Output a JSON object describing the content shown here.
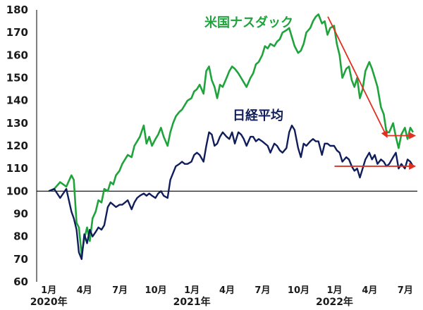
{
  "chart_data": {
    "type": "line",
    "title": "",
    "xlabel": "",
    "ylabel": "",
    "ylim": [
      60,
      180
    ],
    "yticks": [
      60,
      70,
      80,
      90,
      100,
      110,
      120,
      130,
      140,
      150,
      160,
      170,
      180
    ],
    "baseline": 100,
    "grid": false,
    "x_labels": [
      {
        "label": "1月",
        "x": "2020-01"
      },
      {
        "label": "4月",
        "x": "2020-04"
      },
      {
        "label": "7月",
        "x": "2020-07"
      },
      {
        "label": "10月",
        "x": "2020-10"
      },
      {
        "label": "1月",
        "x": "2021-01"
      },
      {
        "label": "4月",
        "x": "2021-04"
      },
      {
        "label": "7月",
        "x": "2021-07"
      },
      {
        "label": "10月",
        "x": "2021-10"
      },
      {
        "label": "1月",
        "x": "2022-01"
      },
      {
        "label": "4月",
        "x": "2022-04"
      },
      {
        "label": "7月",
        "x": "2022-07"
      }
    ],
    "year_labels": [
      {
        "label": "2020年",
        "x": "2020-01"
      },
      {
        "label": "2021年",
        "x": "2021-01"
      },
      {
        "label": "2022年",
        "x": "2022-01"
      }
    ],
    "series": [
      {
        "name": "米国ナスダック",
        "color": "#1fa33c",
        "points": [
          [
            "2020-01-01",
            100
          ],
          [
            "2020-01-15",
            101
          ],
          [
            "2020-01-30",
            104
          ],
          [
            "2020-02-15",
            102
          ],
          [
            "2020-02-28",
            107
          ],
          [
            "2020-03-05",
            105
          ],
          [
            "2020-03-12",
            86
          ],
          [
            "2020-03-18",
            84
          ],
          [
            "2020-03-25",
            72
          ],
          [
            "2020-04-01",
            79
          ],
          [
            "2020-04-08",
            84
          ],
          [
            "2020-04-15",
            78
          ],
          [
            "2020-04-22",
            88
          ],
          [
            "2020-04-30",
            91
          ],
          [
            "2020-05-07",
            96
          ],
          [
            "2020-05-15",
            95
          ],
          [
            "2020-05-22",
            101
          ],
          [
            "2020-05-31",
            100
          ],
          [
            "2020-06-07",
            104
          ],
          [
            "2020-06-14",
            103
          ],
          [
            "2020-06-21",
            107
          ],
          [
            "2020-06-30",
            109
          ],
          [
            "2020-07-07",
            112
          ],
          [
            "2020-07-14",
            114
          ],
          [
            "2020-07-21",
            116
          ],
          [
            "2020-07-31",
            115
          ],
          [
            "2020-08-07",
            120
          ],
          [
            "2020-08-14",
            122
          ],
          [
            "2020-08-21",
            124
          ],
          [
            "2020-08-31",
            129
          ],
          [
            "2020-09-07",
            121
          ],
          [
            "2020-09-14",
            124
          ],
          [
            "2020-09-21",
            120
          ],
          [
            "2020-09-30",
            123
          ],
          [
            "2020-10-07",
            125
          ],
          [
            "2020-10-14",
            128
          ],
          [
            "2020-10-21",
            124
          ],
          [
            "2020-10-31",
            120
          ],
          [
            "2020-11-07",
            126
          ],
          [
            "2020-11-14",
            130
          ],
          [
            "2020-11-21",
            133
          ],
          [
            "2020-11-30",
            135
          ],
          [
            "2020-12-07",
            136
          ],
          [
            "2020-12-14",
            138
          ],
          [
            "2020-12-21",
            140
          ],
          [
            "2020-12-31",
            141
          ],
          [
            "2021-01-07",
            144
          ],
          [
            "2021-01-14",
            145
          ],
          [
            "2021-01-21",
            147
          ],
          [
            "2021-01-31",
            143
          ],
          [
            "2021-02-07",
            153
          ],
          [
            "2021-02-14",
            155
          ],
          [
            "2021-02-21",
            149
          ],
          [
            "2021-02-28",
            146
          ],
          [
            "2021-03-07",
            141
          ],
          [
            "2021-03-14",
            147
          ],
          [
            "2021-03-21",
            146
          ],
          [
            "2021-03-31",
            150
          ],
          [
            "2021-04-07",
            153
          ],
          [
            "2021-04-14",
            155
          ],
          [
            "2021-04-21",
            154
          ],
          [
            "2021-04-30",
            152
          ],
          [
            "2021-05-07",
            150
          ],
          [
            "2021-05-14",
            148
          ],
          [
            "2021-05-21",
            146
          ],
          [
            "2021-05-31",
            150
          ],
          [
            "2021-06-07",
            152
          ],
          [
            "2021-06-14",
            156
          ],
          [
            "2021-06-21",
            157
          ],
          [
            "2021-06-30",
            160
          ],
          [
            "2021-07-07",
            164
          ],
          [
            "2021-07-14",
            163
          ],
          [
            "2021-07-21",
            165
          ],
          [
            "2021-07-31",
            164
          ],
          [
            "2021-08-07",
            166
          ],
          [
            "2021-08-14",
            167
          ],
          [
            "2021-08-21",
            170
          ],
          [
            "2021-08-31",
            171
          ],
          [
            "2021-09-07",
            172
          ],
          [
            "2021-09-14",
            168
          ],
          [
            "2021-09-21",
            164
          ],
          [
            "2021-09-30",
            161
          ],
          [
            "2021-10-07",
            162
          ],
          [
            "2021-10-14",
            165
          ],
          [
            "2021-10-21",
            170
          ],
          [
            "2021-10-31",
            172
          ],
          [
            "2021-11-07",
            175
          ],
          [
            "2021-11-14",
            177
          ],
          [
            "2021-11-21",
            178
          ],
          [
            "2021-11-30",
            174
          ],
          [
            "2021-12-07",
            175
          ],
          [
            "2021-12-14",
            169
          ],
          [
            "2021-12-21",
            172
          ],
          [
            "2021-12-31",
            173
          ],
          [
            "2022-01-07",
            165
          ],
          [
            "2022-01-14",
            160
          ],
          [
            "2022-01-21",
            150
          ],
          [
            "2022-01-31",
            154
          ],
          [
            "2022-02-07",
            155
          ],
          [
            "2022-02-14",
            149
          ],
          [
            "2022-02-21",
            146
          ],
          [
            "2022-02-28",
            150
          ],
          [
            "2022-03-07",
            141
          ],
          [
            "2022-03-14",
            145
          ],
          [
            "2022-03-21",
            153
          ],
          [
            "2022-03-31",
            157
          ],
          [
            "2022-04-07",
            154
          ],
          [
            "2022-04-14",
            150
          ],
          [
            "2022-04-21",
            146
          ],
          [
            "2022-04-30",
            137
          ],
          [
            "2022-05-07",
            134
          ],
          [
            "2022-05-14",
            126
          ],
          [
            "2022-05-21",
            126
          ],
          [
            "2022-05-31",
            130
          ],
          [
            "2022-06-07",
            124
          ],
          [
            "2022-06-14",
            119
          ],
          [
            "2022-06-21",
            125
          ],
          [
            "2022-06-30",
            128
          ],
          [
            "2022-07-07",
            123
          ],
          [
            "2022-07-14",
            128
          ],
          [
            "2022-07-21",
            126
          ]
        ]
      },
      {
        "name": "日経平均",
        "color": "#0f1e5a",
        "points": [
          [
            "2020-01-01",
            100
          ],
          [
            "2020-01-15",
            101
          ],
          [
            "2020-01-30",
            97
          ],
          [
            "2020-02-15",
            101
          ],
          [
            "2020-02-28",
            91
          ],
          [
            "2020-03-05",
            88
          ],
          [
            "2020-03-12",
            83
          ],
          [
            "2020-03-18",
            73
          ],
          [
            "2020-03-25",
            70
          ],
          [
            "2020-04-01",
            81
          ],
          [
            "2020-04-08",
            77
          ],
          [
            "2020-04-15",
            83
          ],
          [
            "2020-04-22",
            80
          ],
          [
            "2020-04-30",
            82
          ],
          [
            "2020-05-07",
            84
          ],
          [
            "2020-05-15",
            83
          ],
          [
            "2020-05-22",
            85
          ],
          [
            "2020-05-31",
            93
          ],
          [
            "2020-06-07",
            95
          ],
          [
            "2020-06-14",
            94
          ],
          [
            "2020-06-21",
            93
          ],
          [
            "2020-06-30",
            94
          ],
          [
            "2020-07-07",
            94
          ],
          [
            "2020-07-14",
            95
          ],
          [
            "2020-07-21",
            96
          ],
          [
            "2020-07-31",
            92
          ],
          [
            "2020-08-07",
            95
          ],
          [
            "2020-08-14",
            97
          ],
          [
            "2020-08-21",
            98
          ],
          [
            "2020-08-31",
            99
          ],
          [
            "2020-09-07",
            98
          ],
          [
            "2020-09-14",
            99
          ],
          [
            "2020-09-21",
            98
          ],
          [
            "2020-09-30",
            97
          ],
          [
            "2020-10-07",
            99
          ],
          [
            "2020-10-14",
            100
          ],
          [
            "2020-10-21",
            98
          ],
          [
            "2020-10-31",
            97
          ],
          [
            "2020-11-07",
            105
          ],
          [
            "2020-11-14",
            108
          ],
          [
            "2020-11-21",
            111
          ],
          [
            "2020-11-30",
            112
          ],
          [
            "2020-12-07",
            113
          ],
          [
            "2020-12-14",
            112
          ],
          [
            "2020-12-21",
            112
          ],
          [
            "2020-12-31",
            113
          ],
          [
            "2021-01-07",
            116
          ],
          [
            "2021-01-14",
            117
          ],
          [
            "2021-01-21",
            116
          ],
          [
            "2021-01-31",
            113
          ],
          [
            "2021-02-07",
            120
          ],
          [
            "2021-02-14",
            126
          ],
          [
            "2021-02-21",
            125
          ],
          [
            "2021-02-28",
            120
          ],
          [
            "2021-03-07",
            121
          ],
          [
            "2021-03-14",
            124
          ],
          [
            "2021-03-21",
            126
          ],
          [
            "2021-03-31",
            124
          ],
          [
            "2021-04-07",
            123
          ],
          [
            "2021-04-14",
            126
          ],
          [
            "2021-04-21",
            121
          ],
          [
            "2021-04-30",
            126
          ],
          [
            "2021-05-07",
            125
          ],
          [
            "2021-05-14",
            123
          ],
          [
            "2021-05-21",
            120
          ],
          [
            "2021-05-31",
            124
          ],
          [
            "2021-06-07",
            124
          ],
          [
            "2021-06-14",
            122
          ],
          [
            "2021-06-21",
            123
          ],
          [
            "2021-06-30",
            122
          ],
          [
            "2021-07-07",
            121
          ],
          [
            "2021-07-14",
            120
          ],
          [
            "2021-07-21",
            117
          ],
          [
            "2021-07-31",
            121
          ],
          [
            "2021-08-07",
            120
          ],
          [
            "2021-08-14",
            118
          ],
          [
            "2021-08-21",
            117
          ],
          [
            "2021-08-31",
            119
          ],
          [
            "2021-09-07",
            126
          ],
          [
            "2021-09-14",
            129
          ],
          [
            "2021-09-21",
            127
          ],
          [
            "2021-09-30",
            119
          ],
          [
            "2021-10-07",
            115
          ],
          [
            "2021-10-14",
            121
          ],
          [
            "2021-10-21",
            120
          ],
          [
            "2021-10-31",
            122
          ],
          [
            "2021-11-07",
            123
          ],
          [
            "2021-11-14",
            122
          ],
          [
            "2021-11-21",
            122
          ],
          [
            "2021-11-30",
            116
          ],
          [
            "2021-12-07",
            121
          ],
          [
            "2021-12-14",
            121
          ],
          [
            "2021-12-21",
            120
          ],
          [
            "2021-12-31",
            120
          ],
          [
            "2022-01-07",
            118
          ],
          [
            "2022-01-14",
            117
          ],
          [
            "2022-01-21",
            113
          ],
          [
            "2022-01-31",
            115
          ],
          [
            "2022-02-07",
            114
          ],
          [
            "2022-02-14",
            111
          ],
          [
            "2022-02-21",
            109
          ],
          [
            "2022-02-28",
            110
          ],
          [
            "2022-03-07",
            106
          ],
          [
            "2022-03-14",
            110
          ],
          [
            "2022-03-21",
            114
          ],
          [
            "2022-03-31",
            117
          ],
          [
            "2022-04-07",
            114
          ],
          [
            "2022-04-14",
            116
          ],
          [
            "2022-04-21",
            112
          ],
          [
            "2022-04-30",
            114
          ],
          [
            "2022-05-07",
            113
          ],
          [
            "2022-05-14",
            111
          ],
          [
            "2022-05-21",
            112
          ],
          [
            "2022-05-31",
            115
          ],
          [
            "2022-06-07",
            117
          ],
          [
            "2022-06-14",
            110
          ],
          [
            "2022-06-21",
            112
          ],
          [
            "2022-06-30",
            110
          ],
          [
            "2022-07-07",
            114
          ],
          [
            "2022-07-14",
            113
          ],
          [
            "2022-07-21",
            111
          ]
        ]
      }
    ],
    "trend_arrows": [
      {
        "from": [
          "2021-12-15",
          177
        ],
        "to": [
          "2022-05-15",
          124
        ],
        "color": "#e03020"
      },
      {
        "from": [
          "2022-05-15",
          124.5
        ],
        "to": [
          "2022-07-25",
          124.5
        ],
        "color": "#e03020"
      },
      {
        "from": [
          "2022-01-01",
          111
        ],
        "to": [
          "2022-07-25",
          111
        ],
        "color": "#e03020"
      }
    ]
  }
}
